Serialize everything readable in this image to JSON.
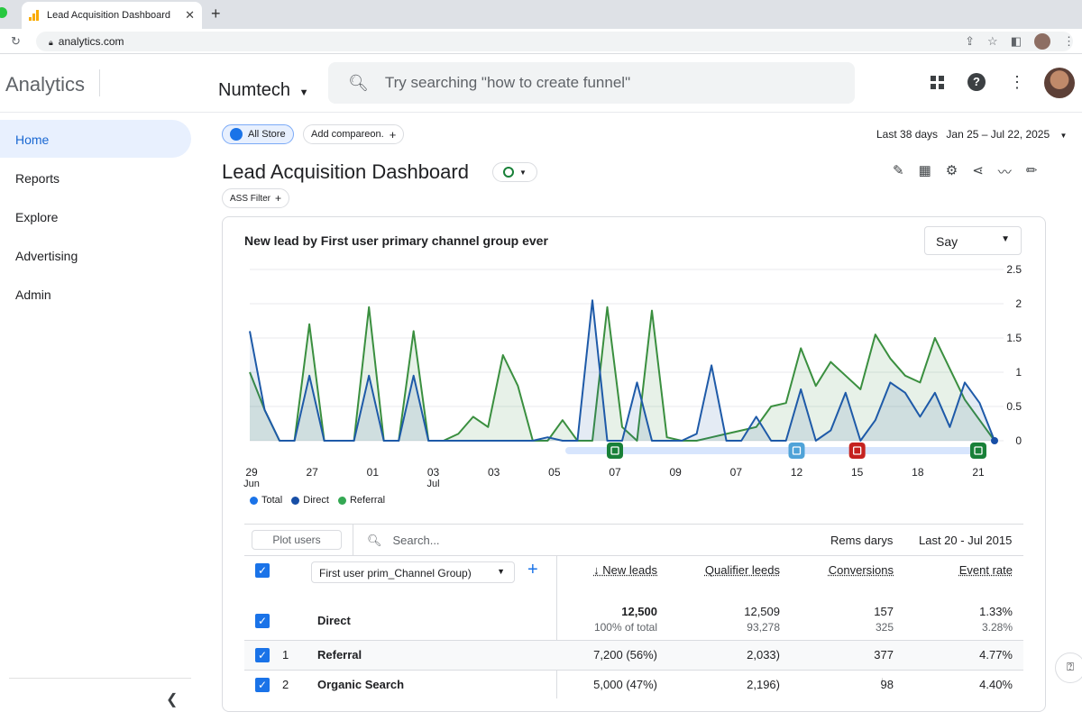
{
  "browser": {
    "tab_title": "Lead Acquisition Dashboard",
    "tab_close": "✕",
    "new_tab": "+",
    "url": "analytics.com"
  },
  "header": {
    "product": "Analytics",
    "account": "Numtech",
    "search_placeholder": "Try searching \"how to create funnel\""
  },
  "sidebar": {
    "items": [
      {
        "label": "Home",
        "active": true
      },
      {
        "label": "Reports"
      },
      {
        "label": "Explore"
      },
      {
        "label": "Advertising"
      },
      {
        "label": "Admin"
      }
    ]
  },
  "toolbar": {
    "store_chip": "All Store",
    "compare_chip": "Add compareon.",
    "filter_chip": "ASS Filter",
    "date_label": "Last 38 days",
    "date_range": "Jan 25 – Jul 22, 2025"
  },
  "page": {
    "title": "Lead Acquisition Dashboard"
  },
  "card": {
    "title": "New lead by First user primary channel group ever",
    "granularity": "Say"
  },
  "chart_data": {
    "type": "area",
    "title": "New lead by First user primary channel group ever",
    "x_tick_labels": [
      "29",
      "27",
      "01",
      "03",
      "03",
      "05",
      "07",
      "09",
      "07",
      "12",
      "15",
      "18",
      "21"
    ],
    "x_tick_sublabels": {
      "0": "Jun",
      "3": "Jul"
    },
    "y_ticks": [
      "2.5",
      "2",
      "1.5",
      "1",
      "0.5",
      "0"
    ],
    "ylim": [
      0,
      2.5
    ],
    "y_axis_side": "right",
    "grid": true,
    "legend": [
      {
        "name": "Total",
        "color": "#1a73e8"
      },
      {
        "name": "Direct",
        "color": "#174ea6"
      },
      {
        "name": "Referral",
        "color": "#34a853"
      }
    ],
    "series": [
      {
        "name": "Direct",
        "color": "#1e5aa8",
        "values": [
          1.6,
          0.45,
          0,
          0,
          0.95,
          0,
          0,
          0,
          0.95,
          0,
          0,
          0.95,
          0,
          0,
          0,
          0,
          0,
          0,
          0,
          0,
          0.05,
          0,
          0,
          2.05,
          0,
          0,
          0.85,
          0,
          0,
          0,
          0.1,
          1.1,
          0,
          0,
          0.35,
          0,
          0,
          0.75,
          0,
          0.15,
          0.7,
          0,
          0.3,
          0.85,
          0.7,
          0.35,
          0.7,
          0.2,
          0.85,
          0.55,
          0
        ]
      },
      {
        "name": "Referral",
        "color": "#3a8f3f",
        "values": [
          1.0,
          0.45,
          0,
          0,
          1.7,
          0,
          0,
          0,
          1.95,
          0,
          0,
          1.6,
          0,
          0,
          0.1,
          0.35,
          0.2,
          1.25,
          0.8,
          0,
          0,
          0.3,
          0,
          0,
          1.95,
          0.2,
          0,
          1.9,
          0.05,
          0,
          0,
          0.05,
          0.1,
          0.15,
          0.2,
          0.5,
          0.55,
          1.35,
          0.8,
          1.15,
          0.95,
          0.75,
          1.55,
          1.2,
          0.95,
          0.85,
          1.5,
          1.05,
          0.6,
          0.3,
          0
        ]
      }
    ],
    "markers": [
      "07",
      "12",
      "15",
      "21"
    ]
  },
  "legend_labels": {
    "total": "Total",
    "direct": "Direct",
    "referral": "Referral"
  },
  "table": {
    "plot_button": "Plot users",
    "search_placeholder": "Search...",
    "rows_label": "Rems darys",
    "date_label": "Last 20 - Jul 2015",
    "dimension": "First user prim_Channel Group)",
    "columns": [
      "New leads",
      "Qualifier leeds",
      "Conversions",
      "Event rate"
    ],
    "totals": {
      "label": "Direct",
      "new_leads": "12,500",
      "new_leads_sub": "100% of total",
      "qualified": "12,509",
      "qualified_sub": "93,278",
      "conversions": "157",
      "conversions_sub": "325",
      "event_rate": "1.33%",
      "event_rate_sub": "3.28%"
    },
    "rows": [
      {
        "index": "1",
        "label": "Referral",
        "new_leads": "7,200 (56%)",
        "qualified": "2,033)",
        "conversions": "377",
        "event_rate": "4.77%"
      },
      {
        "index": "2",
        "label": "Organic Search",
        "new_leads": "5,000 (47%)",
        "qualified": "2,196)",
        "conversions": "ؗ98",
        "event_rate": "4.40%"
      }
    ]
  }
}
